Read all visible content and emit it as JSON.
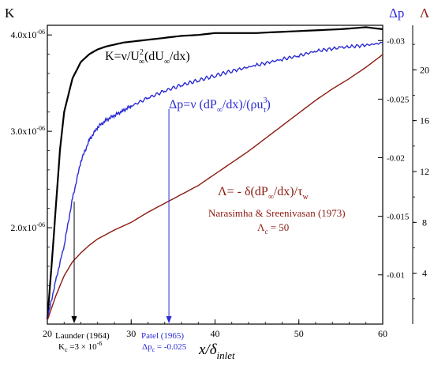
{
  "chart_data": {
    "type": "line",
    "xlabel": "x/δinlet",
    "xlabel_main": "x/δ",
    "xlabel_sub": "inlet",
    "xlim": [
      20,
      60
    ],
    "x_ticks": [
      "20",
      "30",
      "40",
      "50",
      "60"
    ],
    "x_tick_values": [
      20,
      30,
      40,
      50,
      60
    ],
    "axes": {
      "left": {
        "label": "K",
        "ylim": [
          1e-06,
          4.1e-06
        ],
        "ticks": [
          "2.0x10-06",
          "3.0x10-06",
          "4.0x10-06"
        ],
        "tick_values": [
          2e-06,
          3e-06,
          4e-06
        ]
      },
      "right_dp": {
        "label": "Δp",
        "ylim": [
          -0.0058,
          -0.0313
        ],
        "inverted": true,
        "ticks": [
          "-0.01",
          "-0.015",
          "-0.02",
          "-0.025",
          "-0.03"
        ],
        "tick_values": [
          -0.01,
          -0.015,
          -0.02,
          -0.025,
          -0.03
        ]
      },
      "right_lambda": {
        "label": "Λ",
        "ylim": [
          0,
          23.5
        ],
        "ticks": [
          "4",
          "8",
          "12",
          "16",
          "20"
        ],
        "tick_values": [
          4,
          8,
          12,
          16,
          20
        ]
      }
    },
    "series": [
      {
        "name": "K",
        "axis": "left",
        "color": "#000000",
        "x": [
          20,
          20.5,
          21,
          21.5,
          22,
          23,
          24,
          25,
          26,
          27,
          28,
          29,
          30,
          32,
          34,
          36,
          38,
          40,
          45,
          50,
          55,
          58,
          60
        ],
        "y": [
          1.05e-06,
          1.6e-06,
          2.2e-06,
          2.8e-06,
          3.2e-06,
          3.55e-06,
          3.72e-06,
          3.8e-06,
          3.85e-06,
          3.88e-06,
          3.9e-06,
          3.92e-06,
          3.93e-06,
          3.95e-06,
          3.97e-06,
          3.99e-06,
          4e-06,
          4.02e-06,
          4.02e-06,
          4.04e-06,
          4.06e-06,
          4.08e-06,
          4.06e-06
        ]
      },
      {
        "name": "Δp",
        "axis": "right_dp",
        "color": "#2a2ad6",
        "x": [
          20,
          21,
          22,
          23,
          24,
          25,
          26,
          27,
          28,
          29,
          30,
          32,
          34,
          36,
          38,
          40,
          42,
          45,
          48,
          50,
          52,
          55,
          58,
          60
        ],
        "y": [
          -0.0062,
          -0.0095,
          -0.0125,
          -0.0165,
          -0.0197,
          -0.0215,
          -0.0226,
          -0.0232,
          -0.0236,
          -0.024,
          -0.0244,
          -0.0251,
          -0.0257,
          -0.0262,
          -0.0266,
          -0.027,
          -0.0274,
          -0.0279,
          -0.0284,
          -0.0287,
          -0.0291,
          -0.0294,
          -0.0296,
          -0.0298
        ]
      },
      {
        "name": "Λ",
        "axis": "right_lambda",
        "color": "#8b1a10",
        "x": [
          20,
          21,
          22,
          23,
          24,
          25,
          26,
          28,
          30,
          32,
          34,
          36,
          38,
          40,
          42,
          44,
          46,
          48,
          50,
          52,
          54,
          56,
          58,
          59,
          60
        ],
        "y": [
          0.3,
          2.2,
          3.8,
          4.9,
          5.6,
          6.2,
          6.7,
          7.4,
          8.0,
          8.8,
          9.5,
          10.2,
          10.9,
          11.8,
          12.7,
          13.6,
          14.6,
          15.6,
          16.6,
          17.6,
          18.5,
          19.3,
          20.2,
          20.7,
          21.2
        ]
      }
    ],
    "annotations": {
      "k_formula": {
        "base": "K=ν/U",
        "sub": "∞",
        "sup": "2",
        "rest1": "(dU",
        "sub2": "∞",
        "rest2": "/dx)"
      },
      "dp_formula": {
        "base": "Δp=ν (dP",
        "sub": "∞",
        "mid": "/dx)/(ρu",
        "sub2": "τ",
        "sup2": "3",
        "rest": ")"
      },
      "lambda_formula": {
        "base": "Λ= - δ(dP",
        "sub": "∞",
        "mid": "/dx)/τ",
        "sub2": "w"
      },
      "narasimha": "Narasimha & Sreenivasan (1973)",
      "lambda_c": {
        "base": "Λ",
        "sub": "c",
        "rest": " = 50"
      },
      "launder": {
        "title": "Launder (1964)",
        "line2_base": "K",
        "line2_sub": "c",
        "line2_rest": " =3 × 10",
        "line2_sup": "-6",
        "x": 23.2
      },
      "patel": {
        "title": "Patel (1965)",
        "line2_base": "Δp",
        "line2_sub": "c",
        "line2_rest": " = -0.025",
        "x": 34.5
      }
    },
    "colors": {
      "k": "#000000",
      "dp": "#2a2ad6",
      "lambda": "#8b1a10"
    }
  }
}
